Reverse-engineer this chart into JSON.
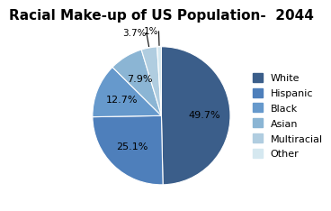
{
  "title": "Racial Make-up of US Population-  2044",
  "labels": [
    "White",
    "Hispanic",
    "Black",
    "Asian",
    "Multiracial",
    "Other"
  ],
  "values": [
    49.7,
    25.1,
    12.7,
    7.9,
    3.7,
    1.0
  ],
  "colors": [
    "#3B5E8A",
    "#4E7FBB",
    "#6699CC",
    "#8BB5D4",
    "#B0CDE0",
    "#D5E8F0"
  ],
  "pct_labels": [
    "49.7%",
    "25.1%",
    "12.7%",
    "7.9%",
    "3.7%",
    "1%"
  ],
  "startangle": 90,
  "title_fontsize": 11,
  "label_fontsize": 8,
  "legend_fontsize": 8
}
